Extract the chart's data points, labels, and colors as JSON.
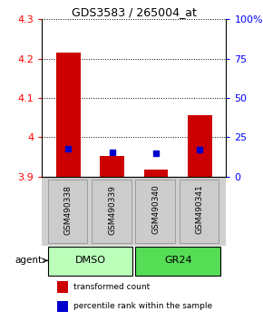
{
  "title": "GDS3583 / 265004_at",
  "samples": [
    "GSM490338",
    "GSM490339",
    "GSM490340",
    "GSM490341"
  ],
  "red_values": [
    4.215,
    3.952,
    3.918,
    4.055
  ],
  "blue_values": [
    3.97,
    3.962,
    3.96,
    3.968
  ],
  "y_min": 3.9,
  "y_max": 4.3,
  "y_ticks": [
    3.9,
    4.0,
    4.1,
    4.2,
    4.3
  ],
  "right_y_ticks": [
    0,
    25,
    50,
    75,
    100
  ],
  "right_y_labels": [
    "0",
    "25",
    "50",
    "75",
    "100%"
  ],
  "bar_color": "#cc0000",
  "blue_color": "#0000cc",
  "bar_width": 0.55,
  "label_area_color": "#d0d0d0",
  "dmso_color": "#bbffbb",
  "gr24_color": "#55dd55",
  "legend_red": "transformed count",
  "legend_blue": "percentile rank within the sample"
}
